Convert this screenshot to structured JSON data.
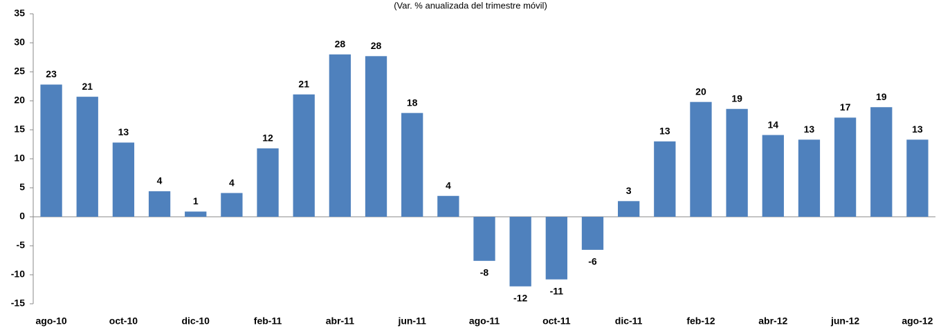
{
  "chart_data": {
    "type": "bar",
    "subtitle": "(Var. % anualizada del trimestre móvil)",
    "categories": [
      "ago-10",
      null,
      "oct-10",
      null,
      "dic-10",
      null,
      "feb-11",
      null,
      "abr-11",
      null,
      "jun-11",
      null,
      "ago-11",
      null,
      "oct-11",
      null,
      "dic-11",
      null,
      "feb-12",
      null,
      "abr-12",
      null,
      "jun-12",
      null,
      "ago-12"
    ],
    "values": [
      22.8,
      20.7,
      12.8,
      4.4,
      0.9,
      4.1,
      11.8,
      21.1,
      28.0,
      27.7,
      17.9,
      3.6,
      -7.6,
      -12.0,
      -10.8,
      -5.7,
      2.7,
      13.0,
      19.8,
      18.6,
      14.1,
      13.3,
      17.1,
      18.9,
      13.3
    ],
    "value_labels": [
      "23",
      "21",
      "13",
      "4",
      "1",
      "4",
      "12",
      "21",
      "28",
      "28",
      "18",
      "4",
      "-8",
      "-12",
      "-11",
      "-6",
      "3",
      "13",
      "20",
      "19",
      "14",
      "13",
      "17",
      "19",
      "13"
    ],
    "color": "#4f81bd",
    "ylim": [
      -15,
      35
    ],
    "yticks": [
      -15,
      -10,
      -5,
      0,
      5,
      10,
      15,
      20,
      25,
      30,
      35
    ],
    "grid": false
  }
}
